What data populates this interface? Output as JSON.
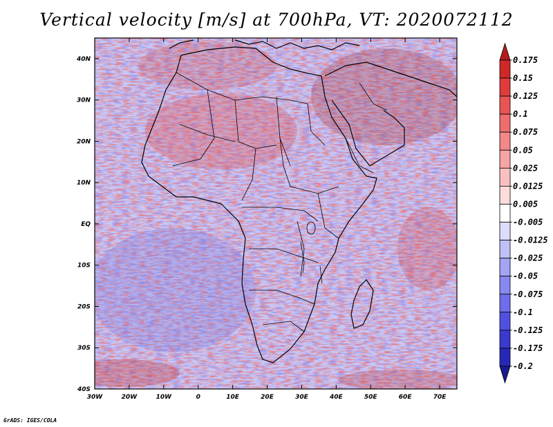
{
  "title": "Vertical velocity [m/s] at 700hPa, VT: 2020072112",
  "credit": "GrADS: IGES/COLA",
  "map": {
    "lon_range": [
      -30,
      75
    ],
    "lat_range": [
      -40,
      45
    ],
    "lat_ticks": [
      {
        "value": 40,
        "label": "40N"
      },
      {
        "value": 30,
        "label": "30N"
      },
      {
        "value": 20,
        "label": "20N"
      },
      {
        "value": 10,
        "label": "10N"
      },
      {
        "value": 0,
        "label": "EQ"
      },
      {
        "value": -10,
        "label": "10S"
      },
      {
        "value": -20,
        "label": "20S"
      },
      {
        "value": -30,
        "label": "30S"
      },
      {
        "value": -40,
        "label": "40S"
      }
    ],
    "lon_ticks": [
      {
        "value": -30,
        "label": "30W"
      },
      {
        "value": -20,
        "label": "20W"
      },
      {
        "value": -10,
        "label": "10W"
      },
      {
        "value": 0,
        "label": "0"
      },
      {
        "value": 10,
        "label": "10E"
      },
      {
        "value": 20,
        "label": "20E"
      },
      {
        "value": 30,
        "label": "30E"
      },
      {
        "value": 40,
        "label": "40E"
      },
      {
        "value": 50,
        "label": "50E"
      },
      {
        "value": 60,
        "label": "60E"
      },
      {
        "value": 70,
        "label": "70E"
      }
    ]
  },
  "colorbar": {
    "boundaries": [
      "0.175",
      "0.15",
      "0.125",
      "0.1",
      "0.075",
      "0.05",
      "0.025",
      "0.0125",
      "0.005",
      "-0.005",
      "-0.0125",
      "-0.025",
      "-0.05",
      "-0.075",
      "-0.1",
      "-0.125",
      "-0.175",
      "-0.2"
    ],
    "colors": [
      "#b41c1c",
      "#d02828",
      "#e03c3c",
      "#e85454",
      "#ee6e6e",
      "#f28888",
      "#f6a4a4",
      "#fac0c0",
      "#fddcdc",
      "#ffffff",
      "#dcdcfc",
      "#c0c0f8",
      "#a4a4f4",
      "#8888f0",
      "#6e6eec",
      "#5050e0",
      "#3a3ad0",
      "#2828b8",
      "#1a1a90"
    ]
  }
}
